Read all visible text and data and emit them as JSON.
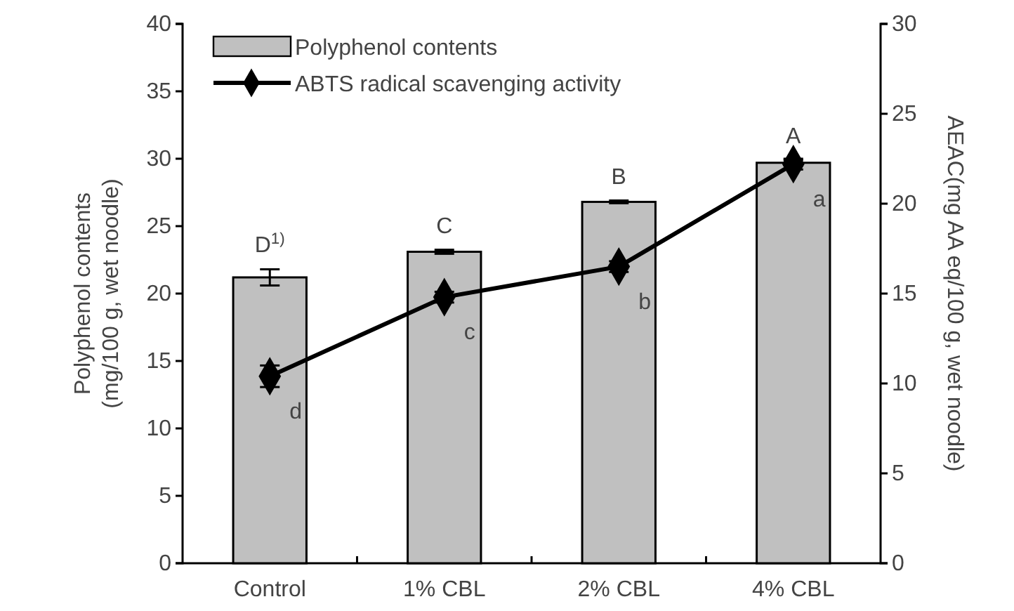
{
  "chart_data": {
    "type": "bar",
    "categories": [
      "Control",
      "1% CBL",
      "2% CBL",
      "4% CBL"
    ],
    "ylabel": "Polyphenol contents\n(mg/100 g, wet noodle)",
    "y2label": "AEAC(mg AA eq/100 g, wet noodle)",
    "ylim": [
      0,
      40
    ],
    "yticks": [
      0,
      5,
      10,
      15,
      20,
      25,
      30,
      35,
      40
    ],
    "y2lim": [
      0,
      30
    ],
    "y2ticks": [
      0,
      5,
      10,
      15,
      20,
      25,
      30
    ],
    "series": [
      {
        "name": "Polyphenol contents",
        "color": "#c0c0c0",
        "values": [
          21.2,
          23.1,
          26.8,
          29.7
        ],
        "errors": [
          0.6,
          0.15,
          0.1,
          0.2
        ]
      },
      {
        "name": "ABTS radical scavenging activity",
        "type": "line",
        "axis": "y2",
        "color": "#000000",
        "values": [
          10.4,
          14.8,
          16.5,
          22.2
        ],
        "errors": [
          0.6,
          0.3,
          0.3,
          0.3
        ],
        "marker": "diamond",
        "line_style": "solid"
      }
    ],
    "annotations": [
      "D$^{1)}$",
      "C",
      "B",
      "A",
      "d",
      "c",
      "b",
      "a"
    ],
    "legend": "top left",
    "grid": false
  }
}
